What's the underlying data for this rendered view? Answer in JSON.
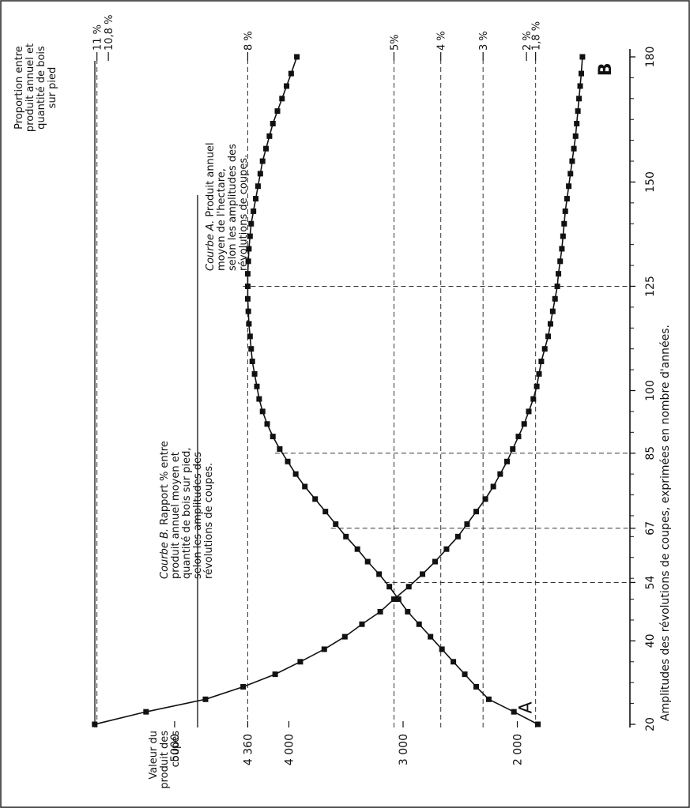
{
  "chart_data": {
    "type": "line",
    "orientation": "rotated 90° counter-clockwise",
    "x": [
      20,
      23,
      26,
      29,
      32,
      35,
      38,
      41,
      44,
      47,
      50,
      53,
      56,
      59,
      62,
      65,
      68,
      71,
      74,
      77,
      80,
      83,
      86,
      89,
      92,
      95,
      98,
      101,
      104,
      107,
      110,
      113,
      116,
      119,
      122,
      125,
      128,
      131,
      134,
      137,
      140,
      143,
      146,
      149,
      152,
      155,
      158,
      161,
      164,
      167,
      170,
      173,
      176,
      180
    ],
    "xlabel": "Amplitudes des révolutions de coupes, exprimées en nombre d'années.",
    "xticks": [
      20,
      40,
      54,
      67,
      85,
      100,
      125,
      150,
      180
    ],
    "xlim": [
      20,
      180
    ],
    "left_axis": {
      "label_lines": [
        "Valeur du",
        "produit des",
        "coupes"
      ],
      "ticks": [
        5000,
        4360,
        4000,
        3000,
        2000
      ],
      "tick_labels": [
        "5000",
        "4 360",
        "4 000",
        "3 000",
        "2 000"
      ],
      "ylim": [
        1720,
        5650
      ]
    },
    "right_axis": {
      "label_lines": [
        "Proportion  entre",
        "produit annuel et",
        "quantité de bois",
        "sur pied"
      ],
      "ticks": [
        11,
        10.8,
        8,
        5,
        4,
        3,
        2,
        1.8
      ],
      "tick_labels": [
        "11 %",
        "10,8 %",
        "8 %",
        "5%",
        "4 %",
        "3 %",
        "2 %",
        "1,8 %"
      ],
      "tick_positions_in_left_units": [
        5680,
        5580,
        4360,
        3080,
        2670,
        2300,
        1920,
        1840
      ]
    },
    "series": [
      {
        "name": "A",
        "values": [
          1820,
          2030,
          2250,
          2360,
          2460,
          2560,
          2660,
          2760,
          2860,
          2960,
          3040,
          3120,
          3210,
          3310,
          3400,
          3500,
          3590,
          3680,
          3770,
          3860,
          3940,
          4010,
          4080,
          4140,
          4190,
          4230,
          4260,
          4280,
          4300,
          4320,
          4330,
          4340,
          4350,
          4355,
          4360,
          4360,
          4360,
          4355,
          4350,
          4340,
          4330,
          4310,
          4290,
          4270,
          4250,
          4230,
          4200,
          4170,
          4140,
          4100,
          4060,
          4020,
          3980,
          3930
        ]
      },
      {
        "name": "B",
        "values": [
          5700,
          5250,
          4730,
          4400,
          4120,
          3900,
          3690,
          3510,
          3360,
          3200,
          3080,
          2950,
          2830,
          2720,
          2620,
          2520,
          2440,
          2360,
          2280,
          2210,
          2150,
          2090,
          2040,
          1990,
          1940,
          1900,
          1860,
          1830,
          1810,
          1790,
          1760,
          1730,
          1710,
          1690,
          1670,
          1650,
          1640,
          1625,
          1610,
          1600,
          1590,
          1580,
          1565,
          1550,
          1535,
          1520,
          1505,
          1490,
          1480,
          1470,
          1460,
          1450,
          1440,
          1430
        ]
      }
    ],
    "reference_lines": {
      "horizontal_left_units": [
        5680,
        4360,
        3080,
        2670,
        2300,
        1840
      ],
      "vertical_x": [
        54,
        67,
        85,
        125
      ]
    },
    "curve_labels": [
      {
        "marker": "A",
        "italic": "Courbe A.",
        "lines": [
          "Produit   annuel",
          "moyen de  l'hectare,",
          "selon les amplitudes des",
          "révolutions de coupes."
        ]
      },
      {
        "marker": "B",
        "italic": "Courbe B.",
        "lines": [
          "Rapport % entre",
          "produit annuel  moyen et",
          "quantité de bois sur pied,",
          "selon  les amplitudes des",
          "révolutions de coupes."
        ]
      }
    ]
  }
}
